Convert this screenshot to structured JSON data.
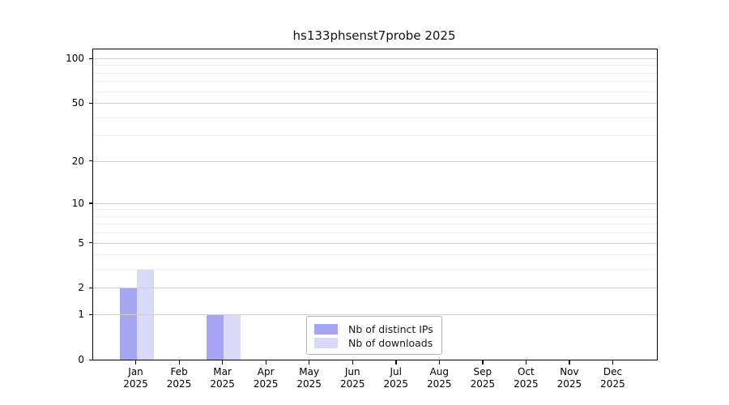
{
  "chart_data": {
    "type": "bar",
    "title": "hs133phsenst7probe 2025",
    "categories": [
      "Jan",
      "Feb",
      "Mar",
      "Apr",
      "May",
      "Jun",
      "Jul",
      "Aug",
      "Sep",
      "Oct",
      "Nov",
      "Dec"
    ],
    "x_year": "2025",
    "series": [
      {
        "name": "Nb of distinct IPs",
        "color": "#a5a5f2",
        "values": [
          2,
          0,
          1,
          0,
          0,
          0,
          0,
          0,
          0,
          0,
          0,
          0
        ]
      },
      {
        "name": "Nb of downloads",
        "color": "#d9d9f9",
        "values": [
          3,
          0,
          1,
          0,
          0,
          0,
          0,
          0,
          0,
          0,
          0,
          0
        ]
      }
    ],
    "y_axis": {
      "scale": "log1p",
      "ticks": [
        100,
        50,
        20,
        10,
        5,
        2,
        1,
        0
      ],
      "minor_ticks": [
        3,
        4,
        6,
        7,
        8,
        9,
        30,
        40,
        60,
        70,
        80,
        90
      ],
      "range": [
        0,
        115
      ]
    },
    "legend": {
      "position": "lower center"
    },
    "grid": true
  },
  "colors": {
    "axis": "#000000",
    "grid_major": "#cfcfcf",
    "grid_minor": "#ededed",
    "legend_border": "#b4b4b4",
    "background": "#ffffff"
  }
}
